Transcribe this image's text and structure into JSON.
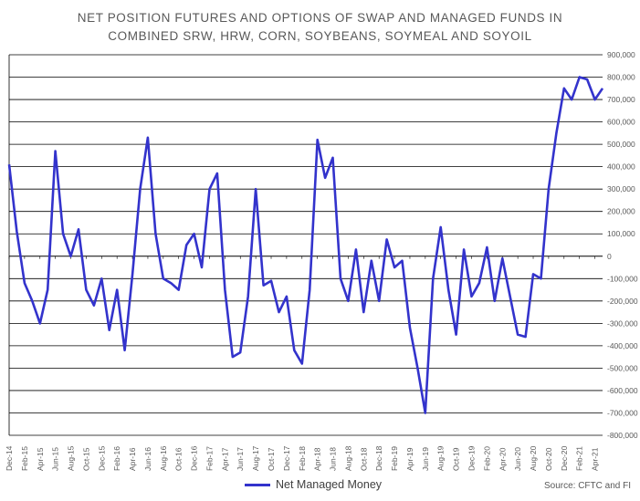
{
  "colors": {
    "series": "#3333cc",
    "grid": "#000000",
    "text": "#595959"
  },
  "chart_data": {
    "type": "line",
    "title": "NET POSITION FUTURES AND OPTIONS OF SWAP AND MANAGED FUNDS IN",
    "subtitle": "COMBINED SRW, HRW, CORN, SOYBEANS, SOYMEAL AND SOYOIL",
    "xlabel": "",
    "ylabel": "",
    "ylim": [
      -800000,
      900000
    ],
    "ytick_values": [
      900000,
      800000,
      700000,
      600000,
      500000,
      400000,
      300000,
      200000,
      100000,
      0,
      -100000,
      -200000,
      -300000,
      -400000,
      -500000,
      -600000,
      -700000,
      -800000
    ],
    "ytick_labels": [
      "900,000",
      "800,000",
      "700,000",
      "600,000",
      "500,000",
      "400,000",
      "300,000",
      "200,000",
      "100,000",
      "0",
      "-100,000",
      "-200,000",
      "-300,000",
      "-400,000",
      "-500,000",
      "-600,000",
      "-700,000",
      "-800,000"
    ],
    "y_axis_position": "right",
    "grid": "horizontal",
    "legend_position": "bottom",
    "source": "Source: CFTC and FI",
    "xlim": [
      "2014-12",
      "2021-05"
    ],
    "xtick_labels": [
      "Dec-14",
      "Feb-15",
      "Apr-15",
      "Jun-15",
      "Aug-15",
      "Oct-15",
      "Dec-15",
      "Feb-16",
      "Apr-16",
      "Jun-16",
      "Aug-16",
      "Oct-16",
      "Dec-16",
      "Feb-17",
      "Apr-17",
      "Jun-17",
      "Aug-17",
      "Oct-17",
      "Dec-17",
      "Feb-18",
      "Apr-18",
      "Jun-18",
      "Aug-18",
      "Oct-18",
      "Dec-18",
      "Feb-19",
      "Apr-19",
      "Jun-19",
      "Aug-19",
      "Oct-19",
      "Dec-19",
      "Feb-20",
      "Apr-20",
      "Jun-20",
      "Aug-20",
      "Oct-20",
      "Dec-20",
      "Feb-21",
      "Apr-21"
    ],
    "series": [
      {
        "name": "Net Managed Money",
        "color": "#3333cc",
        "x": [
          "2014-12",
          "2015-01",
          "2015-02",
          "2015-03",
          "2015-04",
          "2015-05",
          "2015-06",
          "2015-07",
          "2015-08",
          "2015-09",
          "2015-10",
          "2015-11",
          "2015-12",
          "2016-01",
          "2016-02",
          "2016-03",
          "2016-04",
          "2016-05",
          "2016-06",
          "2016-07",
          "2016-08",
          "2016-09",
          "2016-10",
          "2016-11",
          "2016-12",
          "2017-01",
          "2017-02",
          "2017-03",
          "2017-04",
          "2017-05",
          "2017-06",
          "2017-07",
          "2017-08",
          "2017-09",
          "2017-10",
          "2017-11",
          "2017-12",
          "2018-01",
          "2018-02",
          "2018-03",
          "2018-04",
          "2018-05",
          "2018-06",
          "2018-07",
          "2018-08",
          "2018-09",
          "2018-10",
          "2018-11",
          "2018-12",
          "2019-01",
          "2019-02",
          "2019-03",
          "2019-04",
          "2019-05",
          "2019-06",
          "2019-07",
          "2019-08",
          "2019-09",
          "2019-10",
          "2019-11",
          "2019-12",
          "2020-01",
          "2020-02",
          "2020-03",
          "2020-04",
          "2020-05",
          "2020-06",
          "2020-07",
          "2020-08",
          "2020-09",
          "2020-10",
          "2020-11",
          "2020-12",
          "2021-01",
          "2021-02",
          "2021-03",
          "2021-04",
          "2021-05"
        ],
        "values": [
          410000,
          110000,
          -120000,
          -200000,
          -300000,
          -150000,
          470000,
          100000,
          0,
          120000,
          -150000,
          -220000,
          -100000,
          -330000,
          -150000,
          -420000,
          -80000,
          300000,
          530000,
          100000,
          -100000,
          -120000,
          -150000,
          50000,
          100000,
          -50000,
          300000,
          370000,
          -150000,
          -450000,
          -430000,
          -180000,
          300000,
          -130000,
          -110000,
          -250000,
          -180000,
          -420000,
          -480000,
          -150000,
          520000,
          350000,
          440000,
          -100000,
          -200000,
          30000,
          -250000,
          -20000,
          -200000,
          75000,
          -50000,
          -20000,
          -320000,
          -500000,
          -700000,
          -100000,
          130000,
          -150000,
          -350000,
          30000,
          -180000,
          -120000,
          40000,
          -200000,
          -10000,
          -180000,
          -350000,
          -360000,
          -80000,
          -100000,
          300000,
          550000,
          750000,
          700000,
          800000,
          790000,
          700000,
          750000
        ]
      }
    ]
  }
}
